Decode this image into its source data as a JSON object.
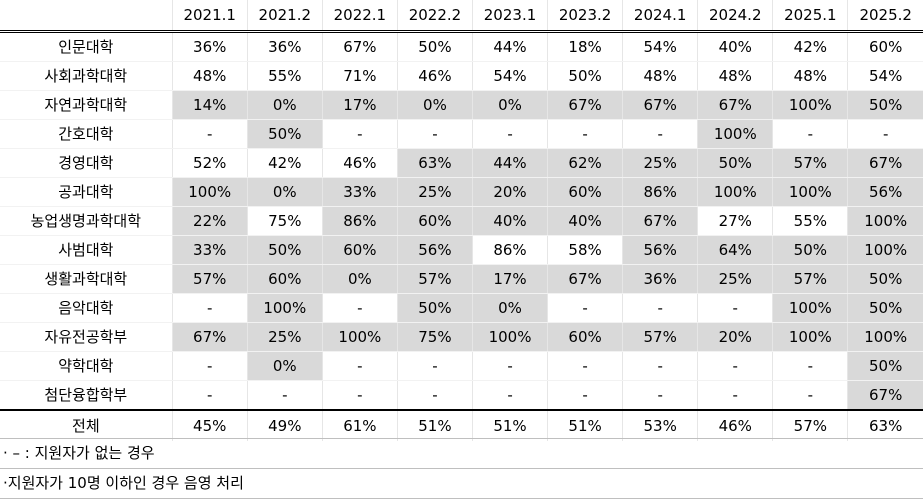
{
  "columns": [
    "2021.1",
    "2021.2",
    "2022.1",
    "2022.2",
    "2023.1",
    "2023.2",
    "2024.1",
    "2024.2",
    "2025.1",
    "2025.2"
  ],
  "rows": [
    {
      "label": "인문대학",
      "values": [
        "36%",
        "36%",
        "67%",
        "50%",
        "44%",
        "18%",
        "54%",
        "40%",
        "42%",
        "60%"
      ],
      "shaded": [
        false,
        false,
        false,
        false,
        false,
        false,
        false,
        false,
        false,
        false
      ]
    },
    {
      "label": "사회과학대학",
      "values": [
        "48%",
        "55%",
        "71%",
        "46%",
        "54%",
        "50%",
        "48%",
        "48%",
        "48%",
        "54%"
      ],
      "shaded": [
        false,
        false,
        false,
        false,
        false,
        false,
        false,
        false,
        false,
        false
      ]
    },
    {
      "label": "자연과학대학",
      "values": [
        "14%",
        "0%",
        "17%",
        "0%",
        "0%",
        "67%",
        "67%",
        "67%",
        "100%",
        "50%"
      ],
      "shaded": [
        true,
        true,
        true,
        true,
        true,
        true,
        true,
        true,
        true,
        true
      ]
    },
    {
      "label": "간호대학",
      "values": [
        "-",
        "50%",
        "-",
        "-",
        "-",
        "-",
        "-",
        "100%",
        "-",
        "-"
      ],
      "shaded": [
        false,
        true,
        false,
        false,
        false,
        false,
        false,
        true,
        false,
        false
      ]
    },
    {
      "label": "경영대학",
      "values": [
        "52%",
        "42%",
        "46%",
        "63%",
        "44%",
        "62%",
        "25%",
        "50%",
        "57%",
        "67%"
      ],
      "shaded": [
        false,
        false,
        false,
        true,
        true,
        true,
        true,
        true,
        true,
        true
      ]
    },
    {
      "label": "공과대학",
      "values": [
        "100%",
        "0%",
        "33%",
        "25%",
        "20%",
        "60%",
        "86%",
        "100%",
        "100%",
        "56%"
      ],
      "shaded": [
        true,
        true,
        true,
        true,
        true,
        true,
        true,
        true,
        true,
        true
      ]
    },
    {
      "label": "농업생명과학대학",
      "values": [
        "22%",
        "75%",
        "86%",
        "60%",
        "40%",
        "40%",
        "67%",
        "27%",
        "55%",
        "100%"
      ],
      "shaded": [
        true,
        false,
        true,
        true,
        true,
        true,
        true,
        false,
        false,
        true
      ]
    },
    {
      "label": "사범대학",
      "values": [
        "33%",
        "50%",
        "60%",
        "56%",
        "86%",
        "58%",
        "56%",
        "64%",
        "50%",
        "100%"
      ],
      "shaded": [
        true,
        true,
        true,
        true,
        false,
        false,
        true,
        true,
        true,
        true
      ]
    },
    {
      "label": "생활과학대학",
      "values": [
        "57%",
        "60%",
        "0%",
        "57%",
        "17%",
        "67%",
        "36%",
        "25%",
        "57%",
        "50%"
      ],
      "shaded": [
        true,
        true,
        true,
        true,
        true,
        true,
        true,
        true,
        true,
        true
      ]
    },
    {
      "label": "음악대학",
      "values": [
        "-",
        "100%",
        "-",
        "50%",
        "0%",
        "-",
        "-",
        "-",
        "100%",
        "50%"
      ],
      "shaded": [
        false,
        true,
        false,
        true,
        true,
        false,
        false,
        false,
        true,
        true
      ]
    },
    {
      "label": "자유전공학부",
      "values": [
        "67%",
        "25%",
        "100%",
        "75%",
        "100%",
        "60%",
        "57%",
        "20%",
        "100%",
        "100%"
      ],
      "shaded": [
        true,
        true,
        true,
        true,
        true,
        true,
        true,
        true,
        true,
        true
      ]
    },
    {
      "label": "약학대학",
      "values": [
        "-",
        "0%",
        "-",
        "-",
        "-",
        "-",
        "-",
        "-",
        "-",
        "50%"
      ],
      "shaded": [
        false,
        true,
        false,
        false,
        false,
        false,
        false,
        false,
        false,
        true
      ]
    },
    {
      "label": "첨단융합학부",
      "values": [
        "-",
        "-",
        "-",
        "-",
        "-",
        "-",
        "-",
        "-",
        "-",
        "67%"
      ],
      "shaded": [
        false,
        false,
        false,
        false,
        false,
        false,
        false,
        false,
        false,
        true
      ]
    }
  ],
  "total": {
    "label": "전체",
    "values": [
      "45%",
      "49%",
      "61%",
      "51%",
      "51%",
      "51%",
      "53%",
      "46%",
      "57%",
      "63%"
    ]
  },
  "notes": [
    "· – : 지원자가 없는 경우",
    "·지원자가 10명 이하인 경우 음영 처리"
  ],
  "colors": {
    "shade": "#d9d9d9",
    "plain": "#ffffff"
  }
}
